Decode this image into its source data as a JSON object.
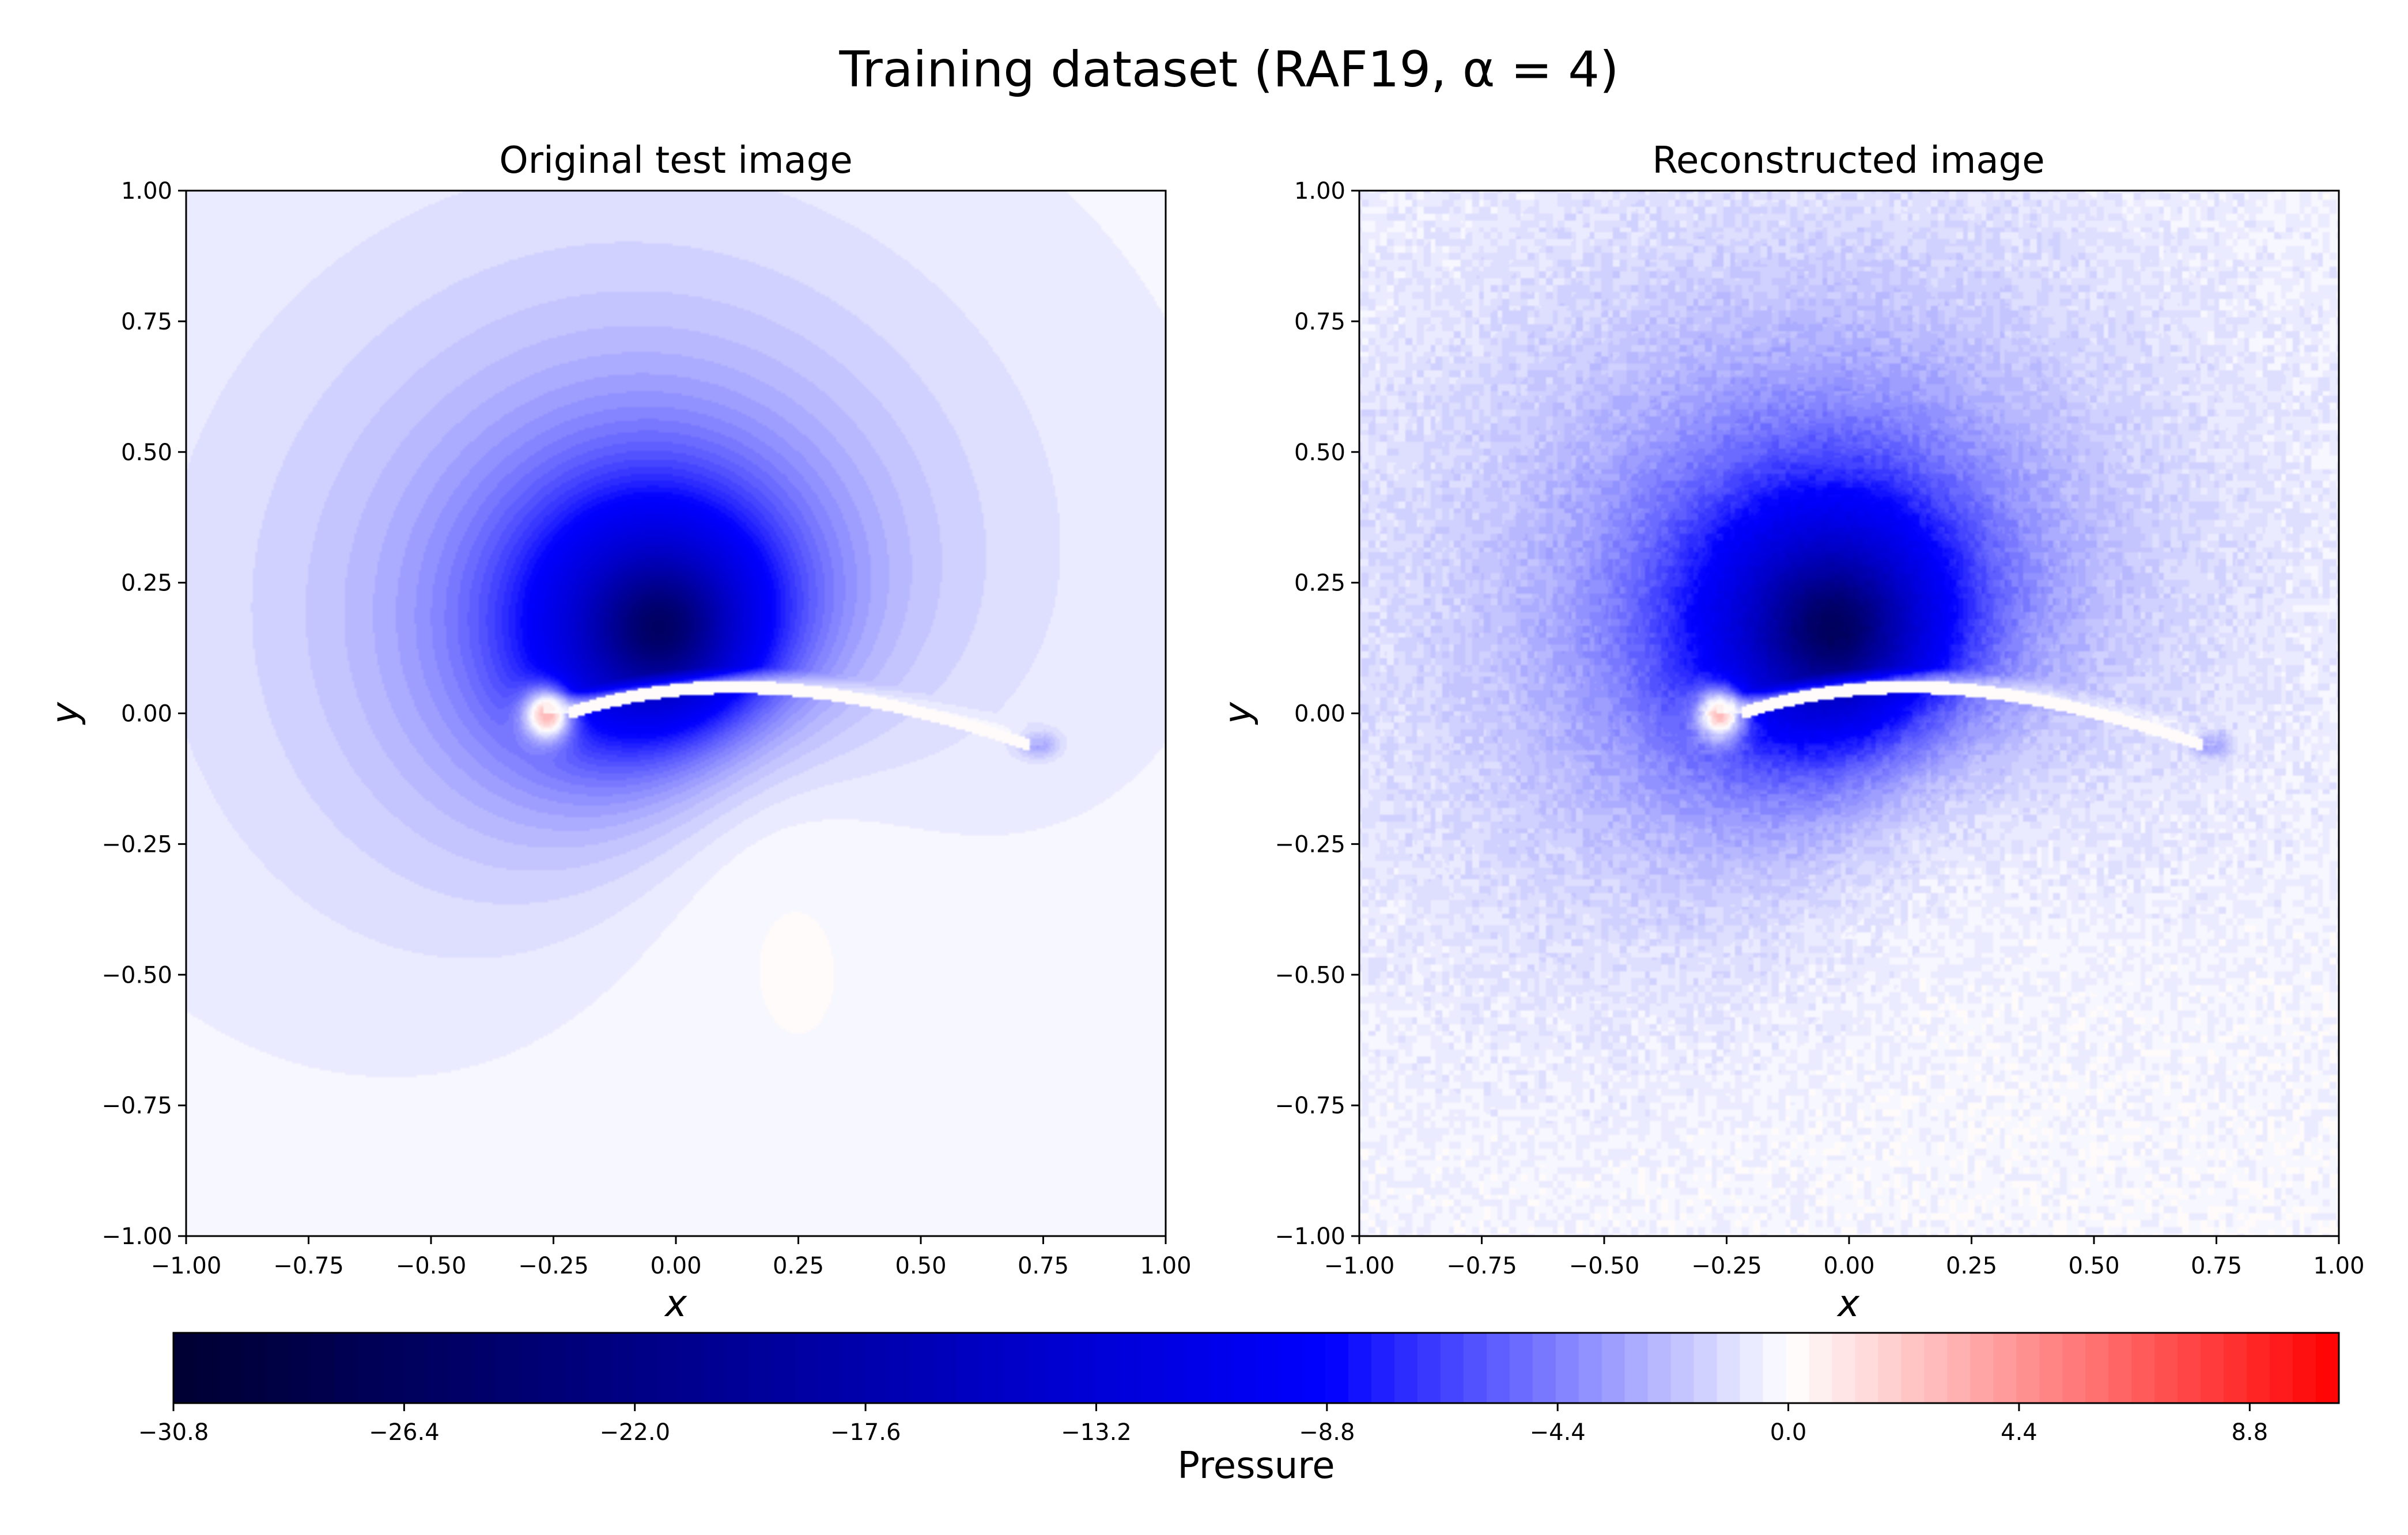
{
  "figure_title": "Training dataset (RAF19, α = 4)",
  "colors": {
    "cmap_min": "#000033",
    "cmap_mid_neg": "#0000ff",
    "cmap_zero": "#ffffff",
    "cmap_max": "#ff0000",
    "axis": "#000000"
  },
  "chart_data": [
    {
      "type": "heatmap",
      "title": "Original test image",
      "xlabel": "x",
      "ylabel": "y",
      "xlim": [
        -1.0,
        1.0
      ],
      "ylim": [
        -1.0,
        1.0
      ],
      "xticks": [
        "−1.00",
        "−0.75",
        "−0.50",
        "−0.25",
        "0.00",
        "0.25",
        "0.50",
        "0.75",
        "1.00"
      ],
      "yticks": [
        "−1.00",
        "−0.75",
        "−0.50",
        "−0.25",
        "0.00",
        "0.25",
        "0.50",
        "0.75",
        "1.00"
      ],
      "xtick_values": [
        -1.0,
        -0.75,
        -0.5,
        -0.25,
        0.0,
        0.25,
        0.5,
        0.75,
        1.0
      ],
      "ytick_values": [
        -1.0,
        -0.75,
        -0.5,
        -0.25,
        0.0,
        0.25,
        0.5,
        0.75,
        1.0
      ],
      "field": {
        "suction_peak": {
          "x": -0.03,
          "y": 0.16,
          "value": -30.8
        },
        "pressure_peak_lower": {
          "x": 0.1,
          "y": 0.03,
          "value": 7.0
        },
        "stagnation_point": {
          "x": -0.26,
          "y": 0.0,
          "value": 10.5
        },
        "trailing_edge": {
          "x": 0.74,
          "y": -0.06
        }
      },
      "grid": false,
      "noise": 0.0
    },
    {
      "type": "heatmap",
      "title": "Reconstructed image",
      "xlabel": "x",
      "ylabel": "y",
      "xlim": [
        -1.0,
        1.0
      ],
      "ylim": [
        -1.0,
        1.0
      ],
      "xticks": [
        "−1.00",
        "−0.75",
        "−0.50",
        "−0.25",
        "0.00",
        "0.25",
        "0.50",
        "0.75",
        "1.00"
      ],
      "yticks": [
        "−1.00",
        "−0.75",
        "−0.50",
        "−0.25",
        "0.00",
        "0.25",
        "0.50",
        "0.75",
        "1.00"
      ],
      "xtick_values": [
        -1.0,
        -0.75,
        -0.5,
        -0.25,
        0.0,
        0.25,
        0.5,
        0.75,
        1.0
      ],
      "ytick_values": [
        -1.0,
        -0.75,
        -0.5,
        -0.25,
        0.0,
        0.25,
        0.5,
        0.75,
        1.0
      ],
      "field": {
        "suction_peak": {
          "x": -0.03,
          "y": 0.16,
          "value": -30.8
        },
        "pressure_peak_lower": {
          "x": 0.1,
          "y": 0.03,
          "value": 6.0
        },
        "stagnation_point": {
          "x": -0.26,
          "y": 0.0,
          "value": 10.5
        },
        "trailing_edge": {
          "x": 0.74,
          "y": -0.06
        }
      },
      "grid": false,
      "noise": 0.9
    },
    {
      "type": "colorbar",
      "label": "Pressure",
      "range": [
        -30.8,
        10.5
      ],
      "ticks": [
        "−30.8",
        "−26.4",
        "−22.0",
        "−17.6",
        "−13.2",
        "−8.8",
        "−4.4",
        "0.0",
        "4.4",
        "8.8"
      ],
      "tick_values": [
        -30.8,
        -26.4,
        -22.0,
        -17.6,
        -13.2,
        -8.8,
        -4.4,
        0.0,
        4.4,
        8.8
      ],
      "orientation": "horizontal",
      "placement": "bottom"
    }
  ]
}
